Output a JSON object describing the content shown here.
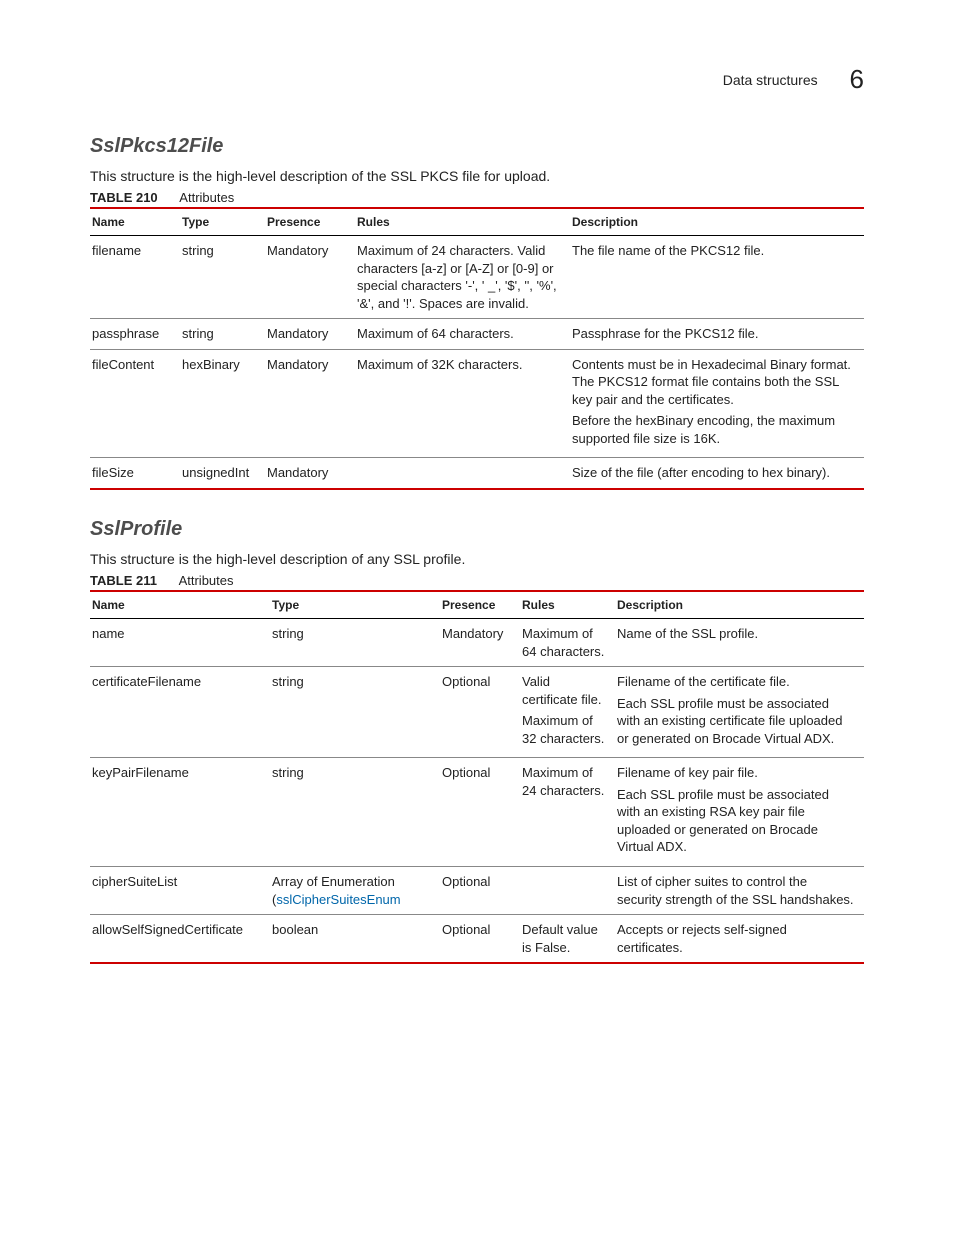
{
  "header": {
    "title": "Data structures",
    "chapter": "6"
  },
  "section1": {
    "heading": "SslPkcs12File",
    "intro": "This structure is the high-level description of the SSL PKCS file for upload.",
    "table_number": "TABLE 210",
    "table_caption": "Attributes",
    "col_widths": [
      "90px",
      "85px",
      "90px",
      "215px",
      "auto"
    ],
    "columns": [
      "Name",
      "Type",
      "Presence",
      "Rules",
      "Description"
    ],
    "rows": [
      {
        "name": "filename",
        "type": "string",
        "presence": "Mandatory",
        "rules": "Maximum of 24 characters. Valid characters [a-z]  or [A-Z] or [0-9] or special characters '-', ' _', '$', '', '%', '&', and '!'. Spaces are invalid.",
        "desc": "The file name of the PKCS12 file."
      },
      {
        "name": "passphrase",
        "type": "string",
        "presence": "Mandatory",
        "rules": "Maximum of 64 characters.",
        "desc": "Passphrase for the PKCS12 file."
      },
      {
        "name": "fileContent",
        "type": "hexBinary",
        "presence": "Mandatory",
        "rules": "Maximum of 32K characters.",
        "desc_p1": "Contents must be in Hexadecimal Binary format. The PKCS12 format file contains both the SSL key pair and the certificates.",
        "desc_p2": "Before the hexBinary encoding, the maximum supported file size is 16K."
      },
      {
        "name": "fileSize",
        "type": "unsignedInt",
        "presence": "Mandatory",
        "rules": "",
        "desc": "Size of the file (after encoding to hex binary)."
      }
    ]
  },
  "section2": {
    "heading": "SslProfile",
    "intro": "This structure is the high-level description of any SSL profile.",
    "table_number": "TABLE 211",
    "table_caption": "Attributes",
    "col_widths": [
      "180px",
      "170px",
      "80px",
      "95px",
      "auto"
    ],
    "columns": [
      "Name",
      "Type",
      "Presence",
      "Rules",
      "Description"
    ],
    "rows": [
      {
        "name": "name",
        "type": "string",
        "presence": "Mandatory",
        "rules": "Maximum of 64 characters.",
        "desc": "Name of the SSL profile."
      },
      {
        "name": "certificateFilename",
        "type": "string",
        "presence": "Optional",
        "rules_p1": "Valid certificate file.",
        "rules_p2": "Maximum of 32 characters.",
        "desc_p1": "Filename of the certificate file.",
        "desc_p2": "Each SSL profile must be associated with an existing certificate file uploaded or generated on Brocade Virtual ADX."
      },
      {
        "name": "keyPairFilename",
        "type": "string",
        "presence": "Optional",
        "rules": "Maximum of 24 characters.",
        "desc_p1": "Filename of key pair file.",
        "desc_p2": "Each SSL profile must be associated with an existing RSA key pair file uploaded or generated on Brocade Virtual ADX."
      },
      {
        "name": "cipherSuiteList",
        "type_pre": "Array of Enumeration (",
        "type_link": "sslCipherSuitesEnum",
        "presence": "Optional",
        "rules": "",
        "desc": "List of cipher suites to control the security strength of the SSL handshakes."
      },
      {
        "name": "allowSelfSignedCertificate",
        "type": "boolean",
        "presence": "Optional",
        "rules": "Default value is False.",
        "desc": "Accepts or rejects self-signed certificates."
      }
    ]
  }
}
